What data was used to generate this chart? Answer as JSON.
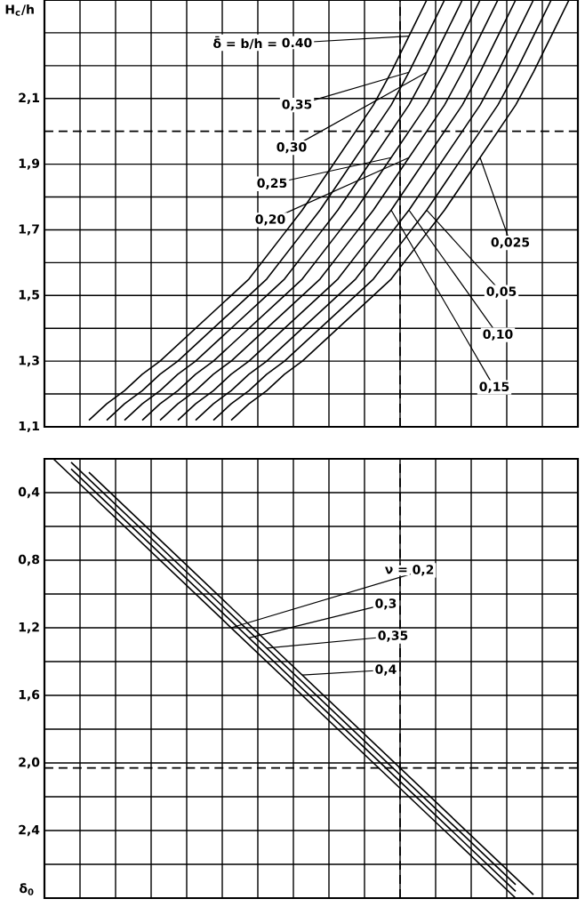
{
  "chart_data": [
    {
      "type": "line",
      "ylabel": "H$_{c}$/h",
      "ylim": [
        1.1,
        2.4
      ],
      "tick_labels": "y",
      "grid": true,
      "categories": [
        null,
        null,
        null,
        null,
        null,
        null,
        null,
        null,
        null,
        null,
        null,
        null,
        null,
        null,
        null,
        null,
        null,
        null,
        null,
        null,
        null,
        null,
        null,
        null,
        null,
        null,
        null,
        null,
        null,
        null
      ],
      "yticks": [
        {
          "value": 1.1,
          "label": "1,1"
        },
        {
          "value": 1.2,
          "label": null
        },
        {
          "value": 1.3,
          "label": "1,3"
        },
        {
          "value": 1.4,
          "label": null
        },
        {
          "value": 1.5,
          "label": "1,5"
        },
        {
          "value": 1.6,
          "label": null
        },
        {
          "value": 1.7,
          "label": "1,7"
        },
        {
          "value": 1.8,
          "label": null
        },
        {
          "value": 1.9,
          "label": "1,9"
        },
        {
          "value": 2.1,
          "label": "2,1"
        },
        {
          "value": 2.2,
          "label": null
        },
        {
          "value": 2.3,
          "label": null
        }
      ],
      "annotations": [
        "δ̄ = b/h =",
        "0.40",
        "0,35",
        "0,30",
        "0,25",
        "0,20",
        "0,15",
        "0,10",
        "0,05",
        "0,025"
      ],
      "ref_lines": [
        {
          "axis": "y",
          "value": 2.0,
          "line_style": "dashed",
          "color": "#000000"
        }
      ],
      "series": [
        {
          "color": "#000000",
          "values": [
            null,
            null,
            1.12,
            1.17,
            1.21,
            1.26,
            1.3,
            1.35,
            1.4,
            1.45,
            1.5,
            1.55,
            1.62,
            1.69,
            1.76,
            1.84,
            1.92,
            2.0,
            2.08,
            2.18,
            2.29,
            2.4,
            null,
            null,
            null,
            null,
            null,
            null,
            null,
            null
          ]
        },
        {
          "color": "#000000",
          "values": [
            null,
            null,
            null,
            1.12,
            1.17,
            1.21,
            1.26,
            1.3,
            1.35,
            1.4,
            1.45,
            1.5,
            1.55,
            1.62,
            1.69,
            1.76,
            1.84,
            1.92,
            2.0,
            2.08,
            2.18,
            2.29,
            2.4,
            null,
            null,
            null,
            null,
            null,
            null,
            null
          ]
        },
        {
          "color": "#000000",
          "values": [
            null,
            null,
            null,
            null,
            1.12,
            1.17,
            1.21,
            1.26,
            1.3,
            1.35,
            1.4,
            1.45,
            1.5,
            1.55,
            1.62,
            1.69,
            1.76,
            1.84,
            1.92,
            2.0,
            2.08,
            2.18,
            2.29,
            2.4,
            null,
            null,
            null,
            null,
            null,
            null
          ]
        },
        {
          "color": "#000000",
          "values": [
            null,
            null,
            null,
            null,
            null,
            1.12,
            1.17,
            1.21,
            1.26,
            1.3,
            1.35,
            1.4,
            1.45,
            1.5,
            1.55,
            1.62,
            1.69,
            1.76,
            1.84,
            1.92,
            2.0,
            2.08,
            2.18,
            2.29,
            2.4,
            null,
            null,
            null,
            null,
            null
          ]
        },
        {
          "color": "#000000",
          "values": [
            null,
            null,
            null,
            null,
            null,
            null,
            1.12,
            1.17,
            1.21,
            1.26,
            1.3,
            1.35,
            1.4,
            1.45,
            1.5,
            1.55,
            1.62,
            1.69,
            1.76,
            1.84,
            1.92,
            2.0,
            2.08,
            2.18,
            2.29,
            2.4,
            null,
            null,
            null,
            null
          ]
        },
        {
          "color": "#000000",
          "values": [
            null,
            null,
            null,
            null,
            null,
            null,
            null,
            1.12,
            1.17,
            1.21,
            1.26,
            1.3,
            1.35,
            1.4,
            1.45,
            1.5,
            1.55,
            1.62,
            1.69,
            1.76,
            1.84,
            1.92,
            2.0,
            2.08,
            2.18,
            2.29,
            2.4,
            null,
            null,
            null
          ]
        },
        {
          "color": "#000000",
          "values": [
            null,
            null,
            null,
            null,
            null,
            null,
            null,
            null,
            1.12,
            1.17,
            1.21,
            1.26,
            1.3,
            1.35,
            1.4,
            1.45,
            1.5,
            1.55,
            1.62,
            1.69,
            1.76,
            1.84,
            1.92,
            2.0,
            2.08,
            2.18,
            2.29,
            2.4,
            null,
            null
          ]
        },
        {
          "color": "#000000",
          "values": [
            null,
            null,
            null,
            null,
            null,
            null,
            null,
            null,
            null,
            1.12,
            1.17,
            1.21,
            1.26,
            1.3,
            1.35,
            1.4,
            1.45,
            1.5,
            1.55,
            1.62,
            1.69,
            1.76,
            1.84,
            1.92,
            2.0,
            2.08,
            2.18,
            2.29,
            2.4,
            null
          ]
        },
        {
          "color": "#000000",
          "values": [
            null,
            null,
            null,
            null,
            null,
            null,
            null,
            null,
            null,
            null,
            1.12,
            1.17,
            1.21,
            1.26,
            1.3,
            1.35,
            1.4,
            1.45,
            1.5,
            1.55,
            1.62,
            1.69,
            1.76,
            1.84,
            1.92,
            2.0,
            2.08,
            2.18,
            2.29,
            2.4
          ]
        }
      ]
    },
    {
      "type": "line",
      "ylabel": "δ$_{0}$",
      "ylim": [
        2.8,
        0.2
      ],
      "tick_labels": "y",
      "grid": true,
      "categories": [
        null,
        null,
        null,
        null,
        null,
        null,
        null,
        null,
        null,
        null,
        null,
        null,
        null,
        null,
        null,
        null,
        null,
        null,
        null,
        null,
        null,
        null,
        null,
        null,
        null,
        null,
        null,
        null,
        null,
        null
      ],
      "yticks": [
        {
          "value": 0.4,
          "label": "0,4"
        },
        {
          "value": 0.6,
          "label": null
        },
        {
          "value": 0.8,
          "label": "0,8"
        },
        {
          "value": 1.0,
          "label": null
        },
        {
          "value": 1.2,
          "label": "1,2"
        },
        {
          "value": 1.4,
          "label": null
        },
        {
          "value": 1.6,
          "label": "1,6"
        },
        {
          "value": 1.8,
          "label": null
        },
        {
          "value": 2.0,
          "label": "2,0"
        },
        {
          "value": 2.2,
          "label": null
        },
        {
          "value": 2.4,
          "label": "2,4"
        },
        {
          "value": 2.6,
          "label": null
        }
      ],
      "annotations": [
        "ν =",
        "0,2",
        "0,3",
        "0,35",
        "0,4"
      ],
      "ref_lines": [
        {
          "axis": "y",
          "value": 2.03,
          "line_style": "dashed",
          "color": "#000000"
        }
      ],
      "series": [
        {
          "color": "#000000",
          "values": [
            0.2,
            0.3,
            0.4,
            0.5,
            0.6,
            0.7,
            0.8,
            0.9,
            1.0,
            1.1,
            1.2,
            1.3,
            1.4,
            1.5,
            1.6,
            1.7,
            1.8,
            1.9,
            2.0,
            2.1,
            2.2,
            2.3,
            2.4,
            2.5,
            2.6,
            2.7,
            2.8,
            null,
            null,
            null
          ]
        },
        {
          "color": "#000000",
          "values": [
            null,
            0.26,
            0.36,
            0.46,
            0.56,
            0.66,
            0.76,
            0.86,
            0.96,
            1.06,
            1.16,
            1.26,
            1.36,
            1.46,
            1.56,
            1.66,
            1.76,
            1.86,
            1.96,
            2.06,
            2.16,
            2.26,
            2.36,
            2.46,
            2.56,
            2.66,
            2.76,
            null,
            null,
            null
          ]
        },
        {
          "color": "#000000",
          "values": [
            null,
            0.22,
            0.32,
            0.42,
            0.52,
            0.62,
            0.72,
            0.82,
            0.92,
            1.02,
            1.12,
            1.22,
            1.32,
            1.42,
            1.52,
            1.62,
            1.72,
            1.82,
            1.92,
            2.02,
            2.12,
            2.22,
            2.32,
            2.42,
            2.52,
            2.62,
            2.72,
            null,
            null,
            null
          ]
        },
        {
          "color": "#000000",
          "values": [
            null,
            null,
            0.28,
            0.38,
            0.48,
            0.58,
            0.68,
            0.78,
            0.88,
            0.98,
            1.08,
            1.18,
            1.28,
            1.38,
            1.48,
            1.58,
            1.68,
            1.78,
            1.88,
            1.98,
            2.08,
            2.18,
            2.28,
            2.38,
            2.48,
            2.58,
            2.68,
            2.78,
            null,
            null
          ]
        }
      ]
    }
  ]
}
